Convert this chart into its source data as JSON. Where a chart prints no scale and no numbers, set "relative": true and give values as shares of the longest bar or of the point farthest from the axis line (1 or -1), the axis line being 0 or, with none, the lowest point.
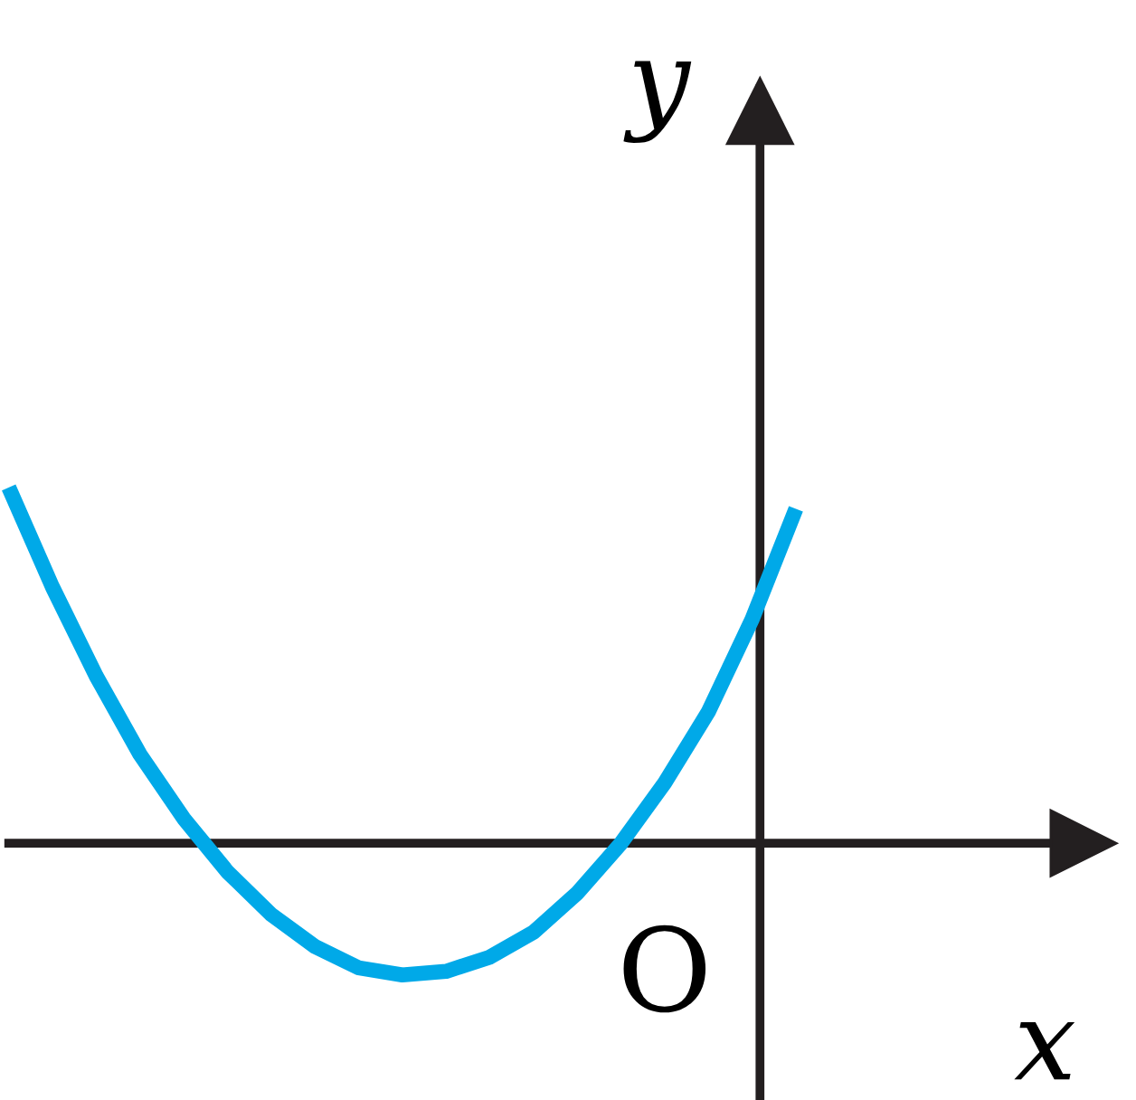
{
  "chart_data": {
    "type": "line",
    "relative": true,
    "xlabel": "x",
    "ylabel": "y",
    "annotations": [
      "O"
    ],
    "categories": [
      null,
      null,
      null,
      null,
      null,
      null,
      null,
      null,
      null,
      null,
      null,
      null,
      null,
      null,
      null,
      null,
      null,
      null,
      null
    ],
    "series": [
      {
        "color": "#00a9e8",
        "values": [
          1,
          0.72,
          0.47,
          0.25,
          0.07,
          -0.08,
          -0.2,
          -0.29,
          -0.35,
          -0.37,
          -0.36,
          -0.32,
          -0.25,
          -0.14,
          0,
          0.17,
          0.37,
          0.63,
          0.94
        ]
      }
    ],
    "grid": false,
    "legend": false,
    "marker": "none",
    "line_style": "solid"
  }
}
